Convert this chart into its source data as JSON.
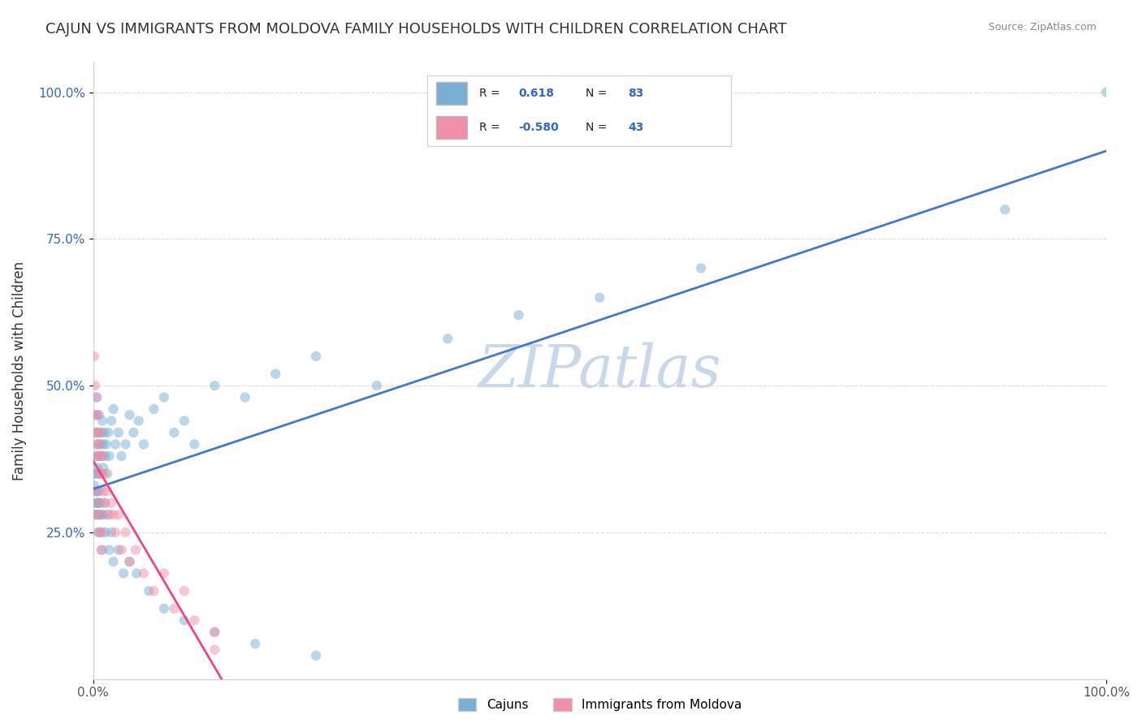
{
  "title": "CAJUN VS IMMIGRANTS FROM MOLDOVA FAMILY HOUSEHOLDS WITH CHILDREN CORRELATION CHART",
  "source": "Source: ZipAtlas.com",
  "ylabel": "Family Households with Children",
  "cajun_color": "#7aafd4",
  "moldova_color": "#f090a8",
  "cajun_line_color": "#4477cc",
  "moldova_line_color": "#ee4488",
  "watermark": "ZIPatlas",
  "watermark_color": "#c8d8e8",
  "background_color": "#ffffff",
  "grid_color": "#dddddd",
  "cajun_x": [
    0.001,
    0.002,
    0.002,
    0.003,
    0.003,
    0.003,
    0.004,
    0.004,
    0.004,
    0.005,
    0.005,
    0.005,
    0.006,
    0.006,
    0.007,
    0.007,
    0.008,
    0.008,
    0.009,
    0.009,
    0.01,
    0.01,
    0.011,
    0.012,
    0.013,
    0.014,
    0.015,
    0.016,
    0.018,
    0.02,
    0.022,
    0.025,
    0.028,
    0.032,
    0.036,
    0.04,
    0.045,
    0.05,
    0.06,
    0.07,
    0.08,
    0.09,
    0.1,
    0.12,
    0.15,
    0.18,
    0.22,
    0.28,
    0.35,
    0.42,
    0.5,
    0.6,
    0.002,
    0.003,
    0.003,
    0.004,
    0.004,
    0.005,
    0.005,
    0.006,
    0.006,
    0.007,
    0.007,
    0.008,
    0.009,
    0.01,
    0.011,
    0.012,
    0.014,
    0.016,
    0.018,
    0.02,
    0.025,
    0.03,
    0.036,
    0.043,
    0.055,
    0.07,
    0.09,
    0.12,
    0.16,
    0.22,
    0.9,
    1.0
  ],
  "cajun_y": [
    0.33,
    0.35,
    0.42,
    0.38,
    0.32,
    0.45,
    0.4,
    0.36,
    0.48,
    0.38,
    0.42,
    0.3,
    0.35,
    0.45,
    0.4,
    0.38,
    0.42,
    0.35,
    0.44,
    0.38,
    0.4,
    0.36,
    0.42,
    0.38,
    0.4,
    0.35,
    0.42,
    0.38,
    0.44,
    0.46,
    0.4,
    0.42,
    0.38,
    0.4,
    0.45,
    0.42,
    0.44,
    0.4,
    0.46,
    0.48,
    0.42,
    0.44,
    0.4,
    0.5,
    0.48,
    0.52,
    0.55,
    0.5,
    0.58,
    0.62,
    0.65,
    0.7,
    0.28,
    0.3,
    0.35,
    0.28,
    0.32,
    0.3,
    0.25,
    0.32,
    0.28,
    0.3,
    0.25,
    0.28,
    0.22,
    0.28,
    0.3,
    0.25,
    0.28,
    0.22,
    0.25,
    0.2,
    0.22,
    0.18,
    0.2,
    0.18,
    0.15,
    0.12,
    0.1,
    0.08,
    0.06,
    0.04,
    0.8,
    1.0
  ],
  "moldova_x": [
    0.001,
    0.002,
    0.002,
    0.003,
    0.003,
    0.004,
    0.004,
    0.005,
    0.005,
    0.006,
    0.006,
    0.007,
    0.007,
    0.008,
    0.009,
    0.01,
    0.011,
    0.012,
    0.014,
    0.016,
    0.018,
    0.02,
    0.022,
    0.025,
    0.028,
    0.032,
    0.036,
    0.042,
    0.05,
    0.06,
    0.07,
    0.08,
    0.09,
    0.1,
    0.12,
    0.003,
    0.004,
    0.005,
    0.006,
    0.007,
    0.008,
    0.009,
    0.12
  ],
  "moldova_y": [
    0.55,
    0.5,
    0.45,
    0.48,
    0.42,
    0.45,
    0.4,
    0.42,
    0.38,
    0.4,
    0.35,
    0.38,
    0.42,
    0.35,
    0.38,
    0.32,
    0.35,
    0.3,
    0.32,
    0.28,
    0.3,
    0.28,
    0.25,
    0.28,
    0.22,
    0.25,
    0.2,
    0.22,
    0.18,
    0.15,
    0.18,
    0.12,
    0.15,
    0.1,
    0.08,
    0.32,
    0.28,
    0.3,
    0.25,
    0.28,
    0.22,
    0.25,
    0.05
  ],
  "xlim": [
    0.0,
    1.0
  ],
  "ylim": [
    0.0,
    1.05
  ],
  "title_fontsize": 13,
  "axis_label_fontsize": 12,
  "tick_fontsize": 11,
  "dot_size": 80,
  "dot_alpha": 0.5
}
